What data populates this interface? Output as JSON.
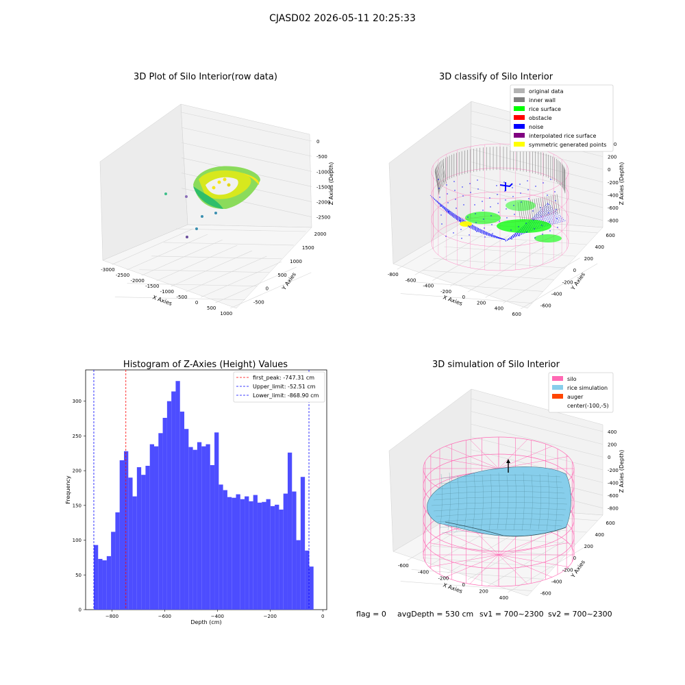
{
  "figure": {
    "suptitle": "CJASD02 2026-05-11 20:25:33",
    "footer": {
      "flag": "flag = 0",
      "avg": "avgDepth = 530 cm",
      "sv1": "sv1 = 700~2300",
      "sv2": "sv2 = 700~2300"
    }
  },
  "colors": {
    "silo": "#ff69b4",
    "rice": "#87ceeb",
    "noise": "#0000ff",
    "rice_surface": "#00ff00",
    "inner_wall": "#808080",
    "original": "#b3b3b3",
    "obstacle": "#ff0000",
    "interp": "#800080",
    "symmetric": "#ffff00",
    "auger": "#ff4500",
    "hist_bar": "#4d4dff"
  },
  "chart_data": [
    {
      "type": "scatter3d",
      "title": "3D Plot of Silo Interior(row data)",
      "xlabel": "X Axies",
      "ylabel": "Y Axies",
      "zlabel": "Z Axies (Depth)",
      "x_ticks": [
        "-3000",
        "-2500",
        "-2000",
        "-1500",
        "-1000",
        "-500",
        "0",
        "500",
        "1000"
      ],
      "y_ticks": [
        "-500",
        "0",
        "500",
        "1000",
        "1500",
        "2000"
      ],
      "z_ticks": [
        "0",
        "-500",
        "-1000",
        "-1500",
        "-2000",
        "-2500"
      ],
      "outliers": [
        {
          "x": -2600,
          "y": 700,
          "z": -1200
        },
        {
          "x": -2200,
          "y": 900,
          "z": -1500
        },
        {
          "x": -1500,
          "y": 200,
          "z": -1800
        },
        {
          "x": -1300,
          "y": 600,
          "z": -1900
        },
        {
          "x": -1100,
          "y": 900,
          "z": -2000
        }
      ]
    },
    {
      "type": "scatter3d",
      "title": "3D classify of Silo Interior",
      "xlabel": "X Axies",
      "ylabel": "Y Axies",
      "zlabel": "Z Axies (Depth)",
      "x_ticks": [
        "-800",
        "-600",
        "-400",
        "-200",
        "0",
        "200",
        "400",
        "600"
      ],
      "y_ticks": [
        "-600",
        "-400",
        "-200",
        "0",
        "200",
        "400",
        "600"
      ],
      "z_ticks": [
        "400",
        "200",
        "0",
        "-200",
        "-400",
        "-600",
        "-800"
      ],
      "legend": [
        {
          "label": "original data",
          "color": "#b3b3b3"
        },
        {
          "label": "inner wall",
          "color": "#808080"
        },
        {
          "label": "rice surface",
          "color": "#00ff00"
        },
        {
          "label": "obstacle",
          "color": "#ff0000"
        },
        {
          "label": "noise",
          "color": "#0000ff"
        },
        {
          "label": "interpolated rice surface",
          "color": "#800080"
        },
        {
          "label": "symmetric generated points",
          "color": "#ffff00"
        }
      ]
    },
    {
      "type": "bar",
      "title": "Histogram of Z-Axies (Height) Values",
      "xlabel": "Depth (cm)",
      "ylabel": "Frequency",
      "xlim": [
        -900,
        15
      ],
      "ylim": [
        0,
        345
      ],
      "x_ticks": [
        -800,
        -600,
        -400,
        -200,
        0
      ],
      "y_ticks": [
        0,
        50,
        100,
        150,
        200,
        250,
        300
      ],
      "bins_start": -868.9,
      "bin_width": 16.348,
      "values": [
        93,
        73,
        71,
        77,
        112,
        140,
        215,
        228,
        190,
        163,
        205,
        194,
        207,
        238,
        235,
        254,
        276,
        300,
        314,
        329,
        285,
        260,
        234,
        230,
        241,
        235,
        238,
        208,
        255,
        180,
        172,
        162,
        161,
        166,
        159,
        163,
        156,
        165,
        154,
        155,
        159,
        149,
        151,
        144,
        167,
        226,
        170,
        100,
        191,
        85,
        62
      ],
      "vlines": [
        {
          "x": -747.31,
          "label": "first_peak: -747.31 cm",
          "color": "#ff0000"
        },
        {
          "x": -52.51,
          "label": "Upper_limit: -52.51 cm",
          "color": "#0000ff"
        },
        {
          "x": -868.9,
          "label": "Lower_limit: -868.90 cm",
          "color": "#0000ff"
        }
      ],
      "legend_position": "upper right"
    },
    {
      "type": "surface3d",
      "title": "3D simulation of Silo Interior",
      "xlabel": "X Axies",
      "ylabel": "Y Axies",
      "zlabel": "Z Axies (Depth)",
      "x_ticks": [
        "-600",
        "-400",
        "-200",
        "0",
        "200",
        "400"
      ],
      "y_ticks": [
        "-600",
        "-400",
        "-200",
        "0",
        "200",
        "400",
        "600"
      ],
      "z_ticks": [
        "400",
        "200",
        "0",
        "-200",
        "-400",
        "-600",
        "-800"
      ],
      "legend": [
        {
          "label": "silo",
          "color": "#ff69b4"
        },
        {
          "label": "rice simulation",
          "color": "#87ceeb"
        },
        {
          "label": "auger",
          "color": "#ff4500"
        },
        {
          "label": "center(-100,-5)",
          "color": "none"
        }
      ]
    }
  ]
}
